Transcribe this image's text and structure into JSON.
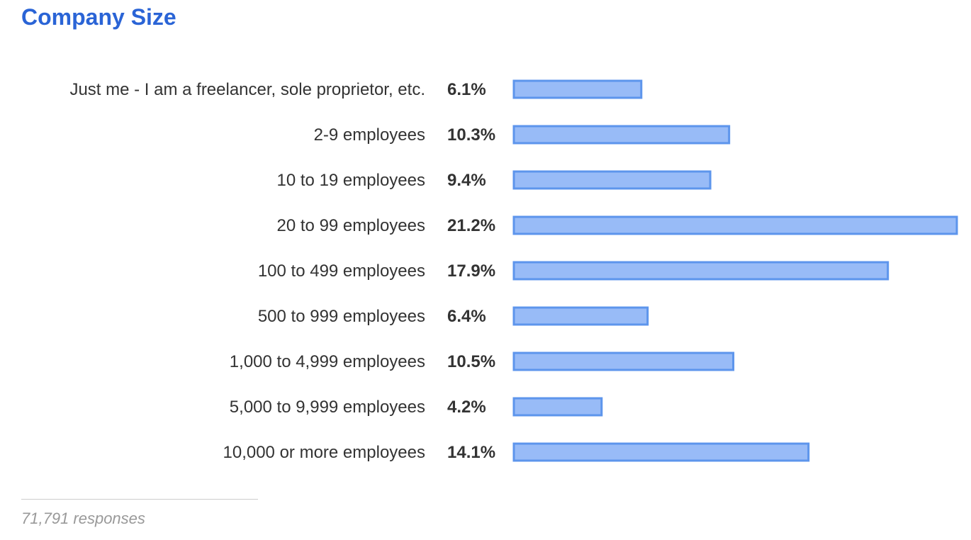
{
  "chart_data": {
    "type": "bar",
    "orientation": "horizontal",
    "title": "Company Size",
    "categories": [
      "Just me - I am a freelancer, sole proprietor, etc.",
      "2-9 employees",
      "10 to 19 employees",
      "20 to 99 employees",
      "100 to 499 employees",
      "500 to 999 employees",
      "1,000 to 4,999 employees",
      "5,000 to 9,999 employees",
      "10,000 or more employees"
    ],
    "values": [
      6.1,
      10.3,
      9.4,
      21.2,
      17.9,
      6.4,
      10.5,
      4.2,
      14.1
    ],
    "value_labels": [
      "6.1%",
      "10.3%",
      "9.4%",
      "21.2%",
      "17.9%",
      "6.4%",
      "10.5%",
      "4.2%",
      "14.1%"
    ],
    "unit": "%",
    "xlim": [
      0,
      21.2
    ],
    "grid": false,
    "legend": "none",
    "colors": {
      "title": "#2a64d6",
      "bar_fill": "#98bbf7",
      "bar_stroke": "#5d95ec"
    }
  },
  "footer": {
    "responses": "71,791 responses"
  }
}
